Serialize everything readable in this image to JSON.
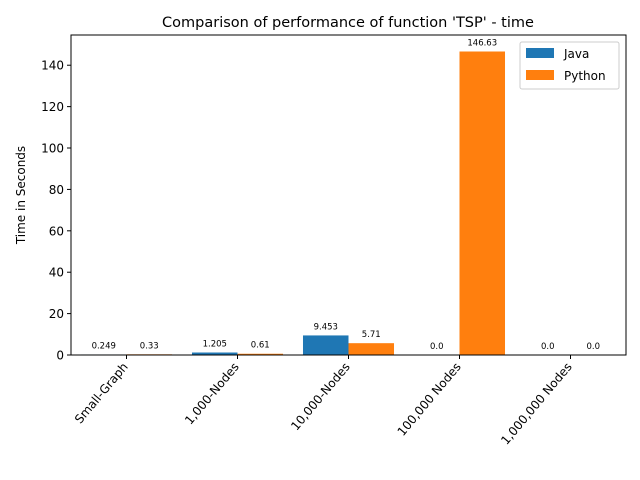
{
  "chart_data": {
    "type": "bar",
    "title": "Comparison of performance of function 'TSP' - time",
    "xlabel": "",
    "ylabel": "Time in Seconds",
    "categories": [
      "Small-Graph",
      "1,000-Nodes",
      "10,000-Nodes",
      "100,000 Nodes",
      "1,000,000 Nodes"
    ],
    "series": [
      {
        "name": "Java",
        "color": "#1f77b4",
        "values": [
          0.249,
          1.205,
          9.453,
          0.0,
          0.0
        ],
        "labels": [
          "0.249",
          "1.205",
          "9.453",
          "0.0",
          "0.0"
        ]
      },
      {
        "name": "Python",
        "color": "#ff7f0e",
        "values": [
          0.33,
          0.61,
          5.71,
          146.63,
          0.0
        ],
        "labels": [
          "0.33",
          "0.61",
          "5.71",
          "146.63",
          "0.0"
        ]
      }
    ],
    "ylim": [
      0,
      154.6
    ],
    "yticks": [
      0,
      20,
      40,
      60,
      80,
      100,
      120,
      140
    ],
    "grid": false,
    "legend_position": "top-right"
  }
}
